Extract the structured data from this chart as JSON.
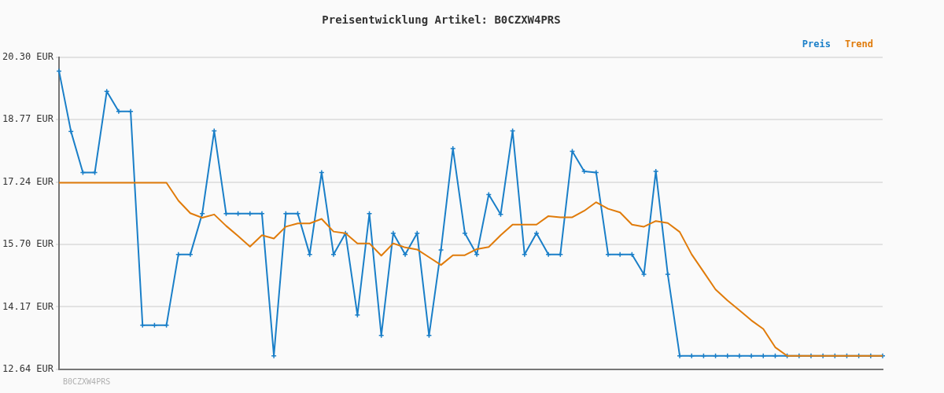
{
  "chart_data": {
    "type": "line",
    "title": "Preisentwicklung Artikel: B0CZXW4PRS",
    "categories": [
      null,
      null,
      null,
      null,
      null,
      null,
      null,
      null,
      null,
      null,
      null,
      null,
      null,
      null,
      null,
      null,
      null,
      null,
      null,
      null,
      null,
      null,
      null,
      null,
      null,
      null,
      null,
      null,
      null,
      null,
      null,
      null,
      null,
      null,
      null,
      null,
      null,
      null,
      null,
      null,
      null,
      null,
      null,
      null,
      null,
      null,
      null,
      null,
      null,
      null,
      null,
      null,
      null,
      null,
      null,
      null,
      null,
      null,
      null,
      null,
      null,
      null,
      null,
      null,
      null,
      null,
      null,
      null,
      null,
      null
    ],
    "series": [
      {
        "name": "Preis",
        "color": "#1a7fc8",
        "marker": "cross",
        "values": [
          19.96,
          18.48,
          17.47,
          17.47,
          19.46,
          18.97,
          18.97,
          13.72,
          13.72,
          13.72,
          15.46,
          15.46,
          16.46,
          18.49,
          16.46,
          16.46,
          16.46,
          16.46,
          12.97,
          16.46,
          16.46,
          15.46,
          17.47,
          15.46,
          15.98,
          13.97,
          16.46,
          13.47,
          15.98,
          15.46,
          15.98,
          13.47,
          15.57,
          18.06,
          15.98,
          15.46,
          16.93,
          16.44,
          18.49,
          15.46,
          15.98,
          15.46,
          15.46,
          17.99,
          17.5,
          17.47,
          15.46,
          15.46,
          15.46,
          14.97,
          17.5,
          14.97,
          12.97,
          12.97,
          12.97,
          12.97,
          12.97,
          12.97,
          12.97,
          12.97,
          12.97,
          12.97,
          12.97,
          12.97,
          12.97,
          12.97,
          12.97,
          12.97,
          12.97,
          12.97
        ]
      },
      {
        "name": "Trend",
        "color": "#e07b0a",
        "marker": "none",
        "values": [
          17.22,
          17.22,
          17.22,
          17.22,
          17.22,
          17.22,
          17.22,
          17.22,
          17.22,
          17.22,
          16.78,
          16.47,
          16.36,
          16.44,
          16.16,
          15.91,
          15.65,
          15.93,
          15.85,
          16.14,
          16.22,
          16.22,
          16.33,
          16.02,
          15.98,
          15.73,
          15.73,
          15.43,
          15.73,
          15.63,
          15.58,
          15.39,
          15.2,
          15.44,
          15.44,
          15.59,
          15.64,
          15.93,
          16.19,
          16.19,
          16.19,
          16.4,
          16.37,
          16.37,
          16.53,
          16.74,
          16.58,
          16.49,
          16.19,
          16.14,
          16.28,
          16.23,
          16.01,
          15.46,
          15.03,
          14.6,
          14.33,
          14.09,
          13.84,
          13.63,
          13.18,
          12.97,
          12.97,
          12.97,
          12.97,
          12.97,
          12.97,
          12.97,
          12.97,
          12.97
        ]
      }
    ],
    "ylim": [
      12.64,
      20.3
    ],
    "yticks": [
      {
        "value": 12.64,
        "label": "12.64 EUR"
      },
      {
        "value": 14.172,
        "label": "14.17 EUR"
      },
      {
        "value": 15.704,
        "label": "15.70 EUR"
      },
      {
        "value": 17.236,
        "label": "17.24 EUR"
      },
      {
        "value": 18.768,
        "label": "18.77 EUR"
      },
      {
        "value": 20.3,
        "label": "20.30 EUR"
      }
    ],
    "tick_labels": "y",
    "grid": "y",
    "legend": "top right",
    "line_style": "solid",
    "annotations": [
      "B0CZXW4PRS"
    ]
  }
}
